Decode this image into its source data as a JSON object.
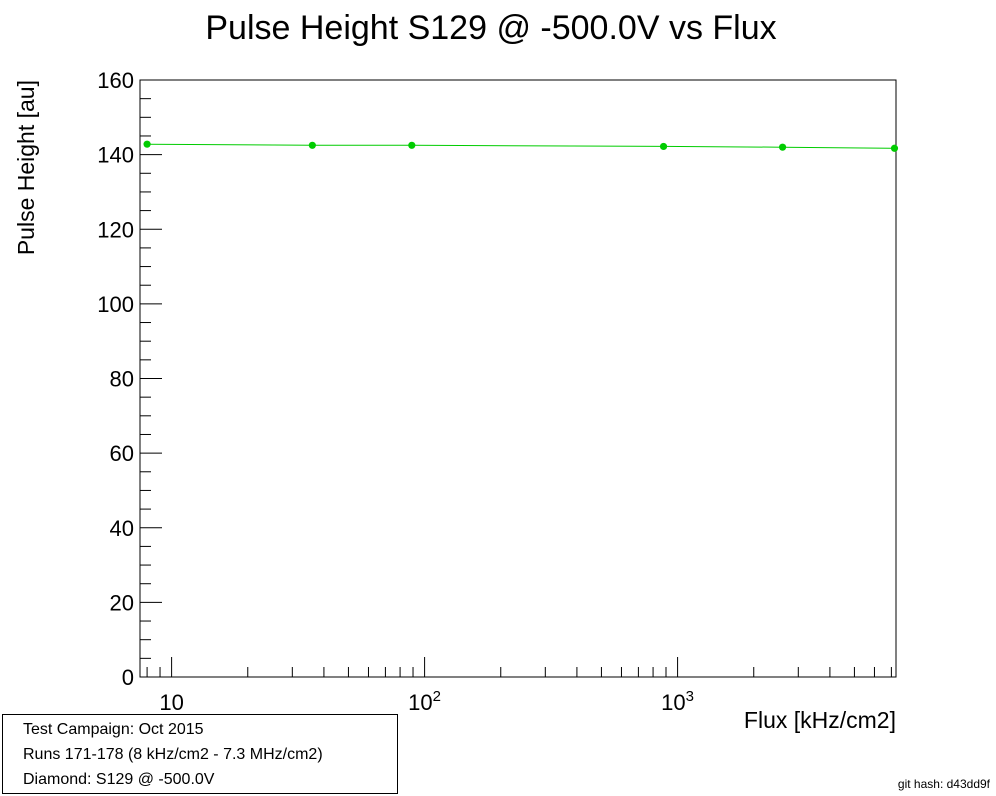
{
  "chart_data": {
    "type": "line",
    "title": "Pulse Height S129 @ -500.0V vs Flux",
    "xlabel": "Flux [kHz/cm2]",
    "ylabel": "Pulse Height [au]",
    "xscale": "log",
    "xlim": [
      7.5,
      7300
    ],
    "ylim": [
      0,
      160
    ],
    "y_ticks": [
      "0",
      "20",
      "40",
      "60",
      "80",
      "100",
      "120",
      "140",
      "160"
    ],
    "x_tick_labels": [
      {
        "base": "10",
        "exp": ""
      },
      {
        "base": "10",
        "exp": "2"
      },
      {
        "base": "10",
        "exp": "3"
      }
    ],
    "series": [
      {
        "name": "S129 @ -500.0V",
        "color": "#00cc00",
        "x": [
          8,
          36,
          89,
          880,
          2600,
          7200
        ],
        "y": [
          142.8,
          142.5,
          142.5,
          142.2,
          142.0,
          141.7
        ]
      }
    ]
  },
  "info_box": {
    "line1": "Test Campaign: Oct 2015",
    "line2": "Runs 171-178 (8 kHz/cm2 - 7.3 MHz/cm2)",
    "line3": "Diamond: S129 @ -500.0V"
  },
  "git_hash": "git hash: d43dd9f"
}
